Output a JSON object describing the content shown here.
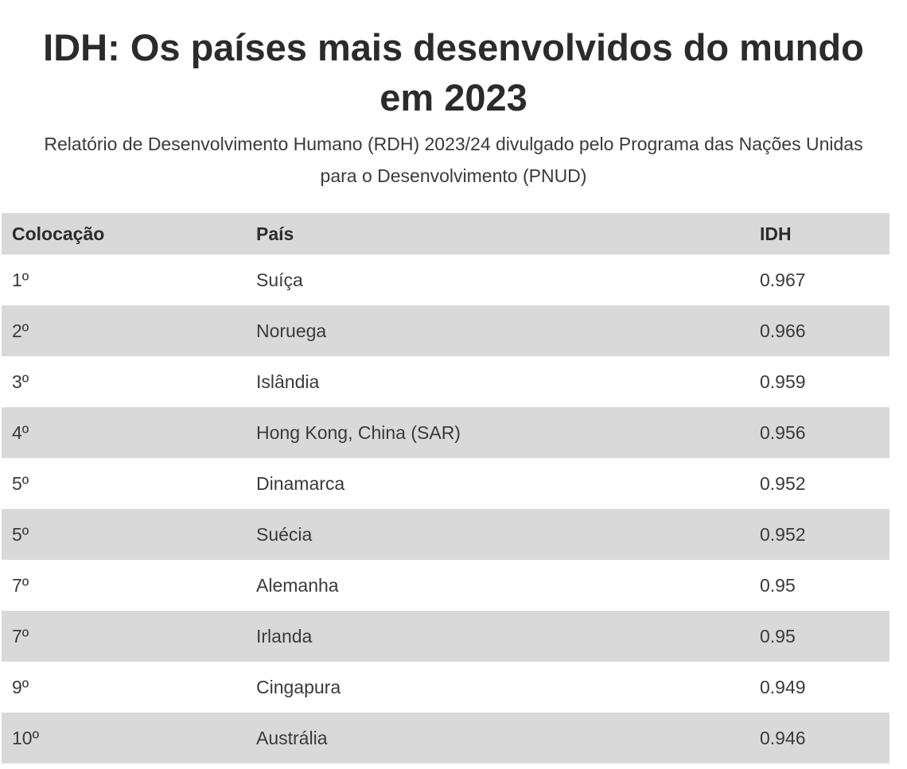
{
  "header": {
    "title": "IDH: Os países mais desenvolvidos do mundo em 2023",
    "subtitle": "Relatório de Desenvolvimento Humano (RDH) 2023/24 divulgado pelo Programa das Nações Unidas para o Desenvolvimento (PNUD)"
  },
  "table": {
    "columns": [
      "Colocação",
      "País",
      "IDH"
    ],
    "rows": [
      [
        "1º",
        "Suíça",
        "0.967"
      ],
      [
        "2º",
        "Noruega",
        "0.966"
      ],
      [
        "3º",
        "Islândia",
        "0.959"
      ],
      [
        "4º",
        "Hong Kong, China (SAR)",
        "0.956"
      ],
      [
        "5º",
        "Dinamarca",
        "0.952"
      ],
      [
        "5º",
        "Suécia",
        "0.952"
      ],
      [
        "7º",
        "Alemanha",
        "0.95"
      ],
      [
        "7º",
        "Irlanda",
        "0.95"
      ],
      [
        "9º",
        "Cingapura",
        "0.949"
      ],
      [
        "10º",
        "Austrália",
        "0.946"
      ]
    ]
  }
}
